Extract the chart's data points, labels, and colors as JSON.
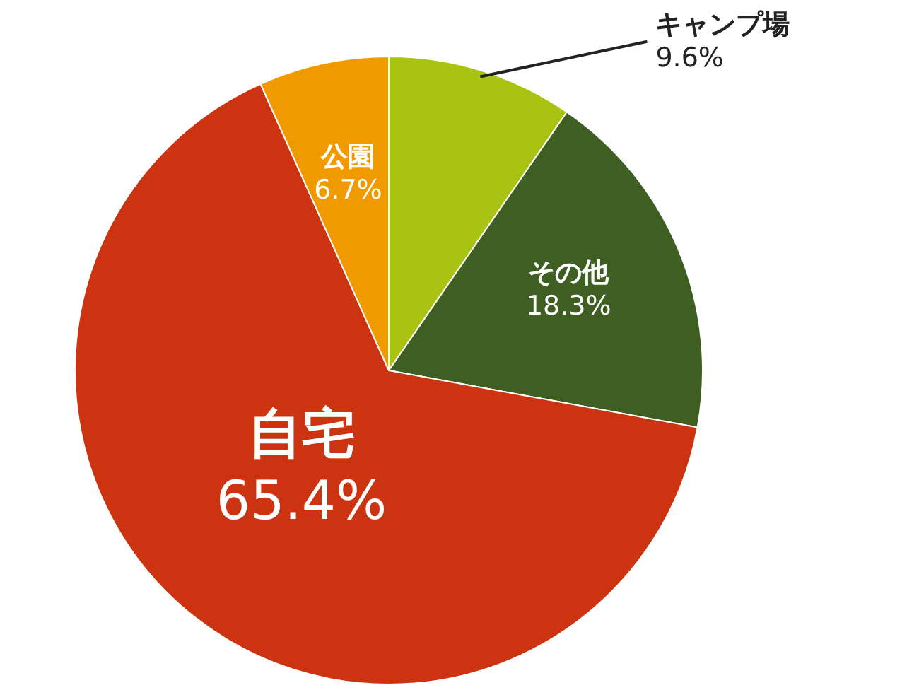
{
  "chart_data": {
    "type": "pie",
    "categories": [
      "キャンプ場",
      "その他",
      "自宅",
      "公園"
    ],
    "values": [
      9.6,
      18.3,
      65.4,
      6.7
    ],
    "colors": [
      "#a9c313",
      "#3f5e22",
      "#cc3311",
      "#f09a00"
    ],
    "value_labels": [
      "9.6%",
      "18.3%",
      "65.4%",
      "6.7%"
    ]
  }
}
